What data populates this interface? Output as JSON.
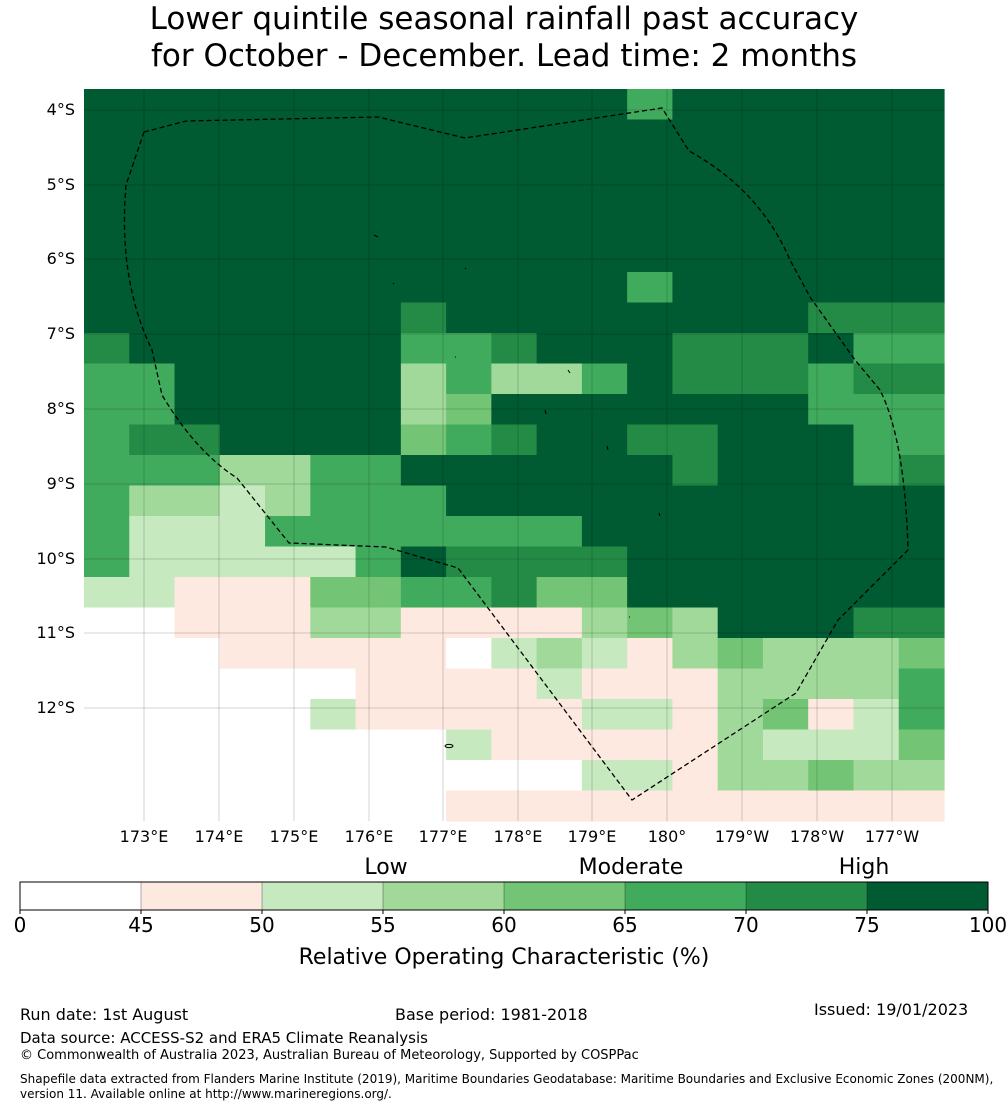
{
  "title": {
    "line1": "Lower quintile seasonal rainfall past accuracy",
    "line2": "for October - December. Lead time: 2 months"
  },
  "map": {
    "y_labels": [
      "4°S",
      "5°S",
      "6°S",
      "7°S",
      "8°S",
      "9°S",
      "10°S",
      "11°S",
      "12°S"
    ],
    "x_labels": [
      "173°E",
      "174°E",
      "175°E",
      "176°E",
      "177°E",
      "178°E",
      "179°E",
      "180°",
      "179°W",
      "178°W",
      "177°W"
    ],
    "colors": [
      "#ffffff",
      "#fde9df",
      "#c7e9c0",
      "#a1d99b",
      "#74c476",
      "#41ab5d",
      "#238b45",
      "#005a32"
    ],
    "grid_classes": [
      "7777777777775777777",
      "7777777777777777777",
      "7777777777777777777",
      "7777777777777777777",
      "7777777777777777777",
      "7777777777777777777",
      "7777777777775777777",
      "7777777677777777666",
      "6777777556777666755",
      "5577777353357666566",
      "5577777347777777555",
      "5667777456776677755",
      "5553355777777677756",
      "5332355577777777777",
      "5222555555577777777",
      "5222225766667777777",
      "2211144556447777777",
      "0011133111134377766",
      "0001111102321343334",
      "0000001111211133335",
      "0000021111122134125",
      "0000000021111132224",
      "0000000000022133433",
      "0000000011111111111"
    ]
  },
  "legend": {
    "categories": [
      "Low",
      "Moderate",
      "High"
    ],
    "ticks": [
      "0",
      "45",
      "50",
      "55",
      "60",
      "65",
      "70",
      "75",
      "100"
    ],
    "label": "Relative Operating Characteristic (%)"
  },
  "footer": {
    "run_date": "Run date: 1st August",
    "base_period": "Base period: 1981-2018",
    "issued": "Issued: 19/01/2023",
    "data_source": "Data source: ACCESS-S2 and ERA5 Climate Reanalysis",
    "copyright": "© Commonwealth of Australia 2023, Australian Bureau of Meteorology, Supported by COSPPac",
    "shapefile": "Shapefile data extracted from Flanders Marine Institute (2019), Maritime Boundaries Geodatabase: Maritime Boundaries and Exclusive Economic Zones (200NM), version 11. Available online at http://www.marineregions.org/."
  }
}
